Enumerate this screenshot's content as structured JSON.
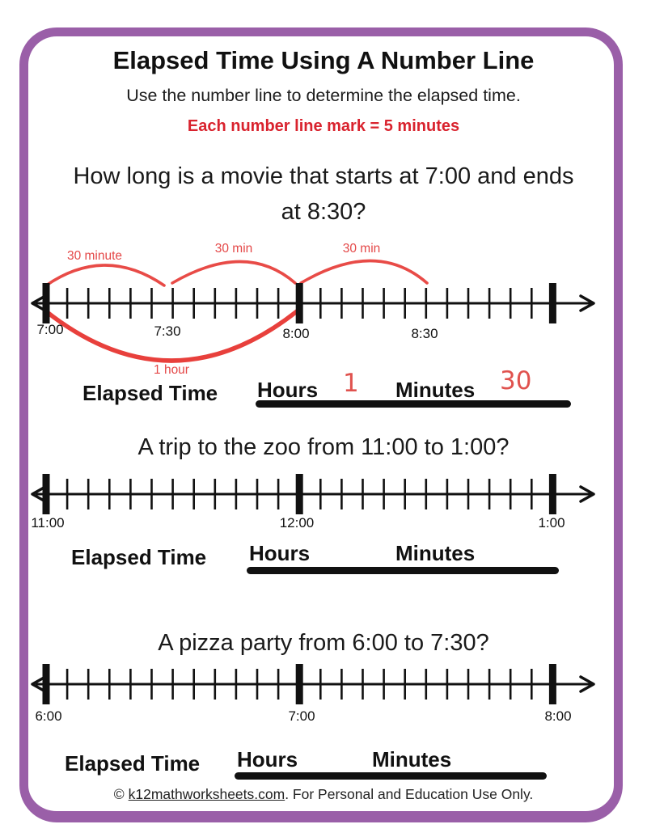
{
  "header": {
    "title": "Elapsed Time Using A Number Line",
    "subtitle": "Use the number line to determine the elapsed time.",
    "instruction": "Each number line mark = 5 minutes"
  },
  "colors": {
    "border_purple": "#9a5fa8",
    "instruction_red": "#d9232e",
    "annotation_red": "#e44848",
    "ink_black": "#111111"
  },
  "problems": [
    {
      "question": "How long is a movie that starts at 7:00 and ends at 8:30?",
      "tick_labels": [
        "7:00",
        "7:30",
        "8:00",
        "8:30"
      ],
      "arc_labels": [
        "30 minute",
        "30 min",
        "30 min"
      ],
      "bottom_arc_label": "1 hour",
      "elapsed_label": "Elapsed Time",
      "hours_label": "Hours",
      "minutes_label": "Minutes",
      "hours_value": "1",
      "minutes_value": "30"
    },
    {
      "question": "A trip to the zoo from 11:00 to 1:00?",
      "tick_labels": [
        "11:00",
        "12:00",
        "1:00"
      ],
      "elapsed_label": "Elapsed Time",
      "hours_label": "Hours",
      "minutes_label": "Minutes",
      "hours_value": "",
      "minutes_value": ""
    },
    {
      "question": "A pizza party from 6:00 to 7:30?",
      "tick_labels": [
        "6:00",
        "7:00",
        "8:00"
      ],
      "elapsed_label": "Elapsed Time",
      "hours_label": "Hours",
      "minutes_label": "Minutes",
      "hours_value": "",
      "minutes_value": ""
    }
  ],
  "footer": {
    "copyright": "©",
    "link_text": "k12mathworksheets.com",
    "suffix": ". For Personal and Education Use Only."
  }
}
